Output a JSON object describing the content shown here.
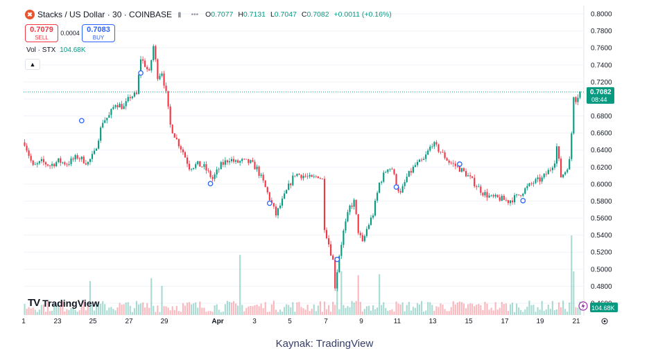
{
  "header": {
    "brand_icon": "stacks-logo-icon",
    "brand_color": "#e8542c",
    "symbol_title": "Stacks / US Dollar · 30 · COINBASE",
    "ohlc": {
      "open_label": "O",
      "open": "0.7077",
      "high_label": "H",
      "high": "0.7131",
      "low_label": "L",
      "low": "0.7047",
      "close_label": "C",
      "close": "0.7082",
      "change": "+0.0011 (+0.16%)"
    }
  },
  "trade": {
    "sell_price": "0.7079",
    "sell_label": "SELL",
    "spread": "0.0004",
    "buy_price": "0.7083",
    "buy_label": "BUY"
  },
  "volume_legend": {
    "label": "Vol · STX",
    "value": "104.68K"
  },
  "logo_text": "TradingView",
  "caption": "Kaynak: TradingView",
  "colors": {
    "up": "#089981",
    "down": "#f23645",
    "last_price_line": "#089981",
    "dividend_marker": "#2962ff"
  },
  "chart_data": {
    "type": "candlestick",
    "y_axis": {
      "range": [
        0.46,
        0.8
      ],
      "tick_labels": [
        "0.8000",
        "0.7800",
        "0.7600",
        "0.7400",
        "0.7200",
        "0.7000",
        "0.6800",
        "0.6600",
        "0.6400",
        "0.6200",
        "0.6000",
        "0.5800",
        "0.5600",
        "0.5400",
        "0.5200",
        "0.5000",
        "0.4800",
        "0.4600"
      ]
    },
    "x_axis": {
      "tick_labels": [
        "1",
        "23",
        "25",
        "27",
        "29",
        "Apr",
        "3",
        "5",
        "7",
        "9",
        "11",
        "13",
        "15",
        "17",
        "19",
        "21"
      ]
    },
    "price_path": [
      [
        0,
        0.649
      ],
      [
        4,
        0.62
      ],
      [
        8,
        0.626
      ],
      [
        12,
        0.622
      ],
      [
        16,
        0.627
      ],
      [
        20,
        0.624
      ],
      [
        25,
        0.632
      ],
      [
        30,
        0.625
      ],
      [
        33,
        0.636
      ],
      [
        37,
        0.674
      ],
      [
        40,
        0.68
      ],
      [
        43,
        0.695
      ],
      [
        47,
        0.69
      ],
      [
        50,
        0.703
      ],
      [
        53,
        0.705
      ],
      [
        55,
        0.748
      ],
      [
        57,
        0.74
      ],
      [
        59,
        0.73
      ],
      [
        61,
        0.762
      ],
      [
        63,
        0.727
      ],
      [
        65,
        0.732
      ],
      [
        67,
        0.706
      ],
      [
        69,
        0.669
      ],
      [
        72,
        0.652
      ],
      [
        75,
        0.638
      ],
      [
        78,
        0.62
      ],
      [
        82,
        0.623
      ],
      [
        85,
        0.62
      ],
      [
        89,
        0.606
      ],
      [
        93,
        0.622
      ],
      [
        97,
        0.63
      ],
      [
        100,
        0.625
      ],
      [
        103,
        0.627
      ],
      [
        107,
        0.625
      ],
      [
        110,
        0.618
      ],
      [
        113,
        0.602
      ],
      [
        116,
        0.583
      ],
      [
        119,
        0.564
      ],
      [
        122,
        0.58
      ],
      [
        125,
        0.597
      ],
      [
        128,
        0.612
      ],
      [
        132,
        0.61
      ],
      [
        136,
        0.606
      ],
      [
        139,
        0.61
      ],
      [
        141,
        0.605
      ],
      [
        142,
        0.55
      ],
      [
        144,
        0.53
      ],
      [
        146,
        0.51
      ],
      [
        147,
        0.48
      ],
      [
        149,
        0.517
      ],
      [
        151,
        0.544
      ],
      [
        154,
        0.573
      ],
      [
        156,
        0.579
      ],
      [
        158,
        0.545
      ],
      [
        160,
        0.53
      ],
      [
        162,
        0.547
      ],
      [
        165,
        0.565
      ],
      [
        168,
        0.601
      ],
      [
        172,
        0.62
      ],
      [
        174,
        0.618
      ],
      [
        176,
        0.6
      ],
      [
        178,
        0.588
      ],
      [
        181,
        0.608
      ],
      [
        185,
        0.622
      ],
      [
        189,
        0.628
      ],
      [
        193,
        0.648
      ],
      [
        197,
        0.638
      ],
      [
        201,
        0.626
      ],
      [
        205,
        0.62
      ],
      [
        209,
        0.612
      ],
      [
        213,
        0.601
      ],
      [
        217,
        0.59
      ],
      [
        221,
        0.584
      ],
      [
        225,
        0.583
      ],
      [
        229,
        0.58
      ],
      [
        233,
        0.585
      ],
      [
        237,
        0.594
      ],
      [
        241,
        0.602
      ],
      [
        245,
        0.606
      ],
      [
        249,
        0.618
      ],
      [
        251,
        0.628
      ],
      [
        252,
        0.644
      ],
      [
        254,
        0.609
      ],
      [
        256,
        0.615
      ],
      [
        258,
        0.627
      ],
      [
        259,
        0.66
      ],
      [
        260,
        0.705
      ],
      [
        261,
        0.7
      ],
      [
        263,
        0.708
      ]
    ],
    "volume_scale": [
      0,
      1
    ],
    "volume_spikes": [
      [
        31,
        0.35
      ],
      [
        60,
        0.38
      ],
      [
        65,
        0.3
      ],
      [
        102,
        0.62
      ],
      [
        148,
        0.33
      ],
      [
        150,
        0.45
      ],
      [
        158,
        0.41
      ],
      [
        168,
        0.42
      ],
      [
        259,
        0.82
      ],
      [
        260,
        0.45
      ]
    ],
    "last_price": "0.7082",
    "countdown": "08:44",
    "volume_last": "104.68K",
    "dividend_markers": [
      [
        27,
        0.6745
      ],
      [
        55,
        0.7305
      ],
      [
        88,
        0.6005
      ],
      [
        116,
        0.5775
      ],
      [
        148,
        0.5115
      ],
      [
        176,
        0.5965
      ],
      [
        206,
        0.6235
      ],
      [
        236,
        0.5805
      ]
    ]
  }
}
